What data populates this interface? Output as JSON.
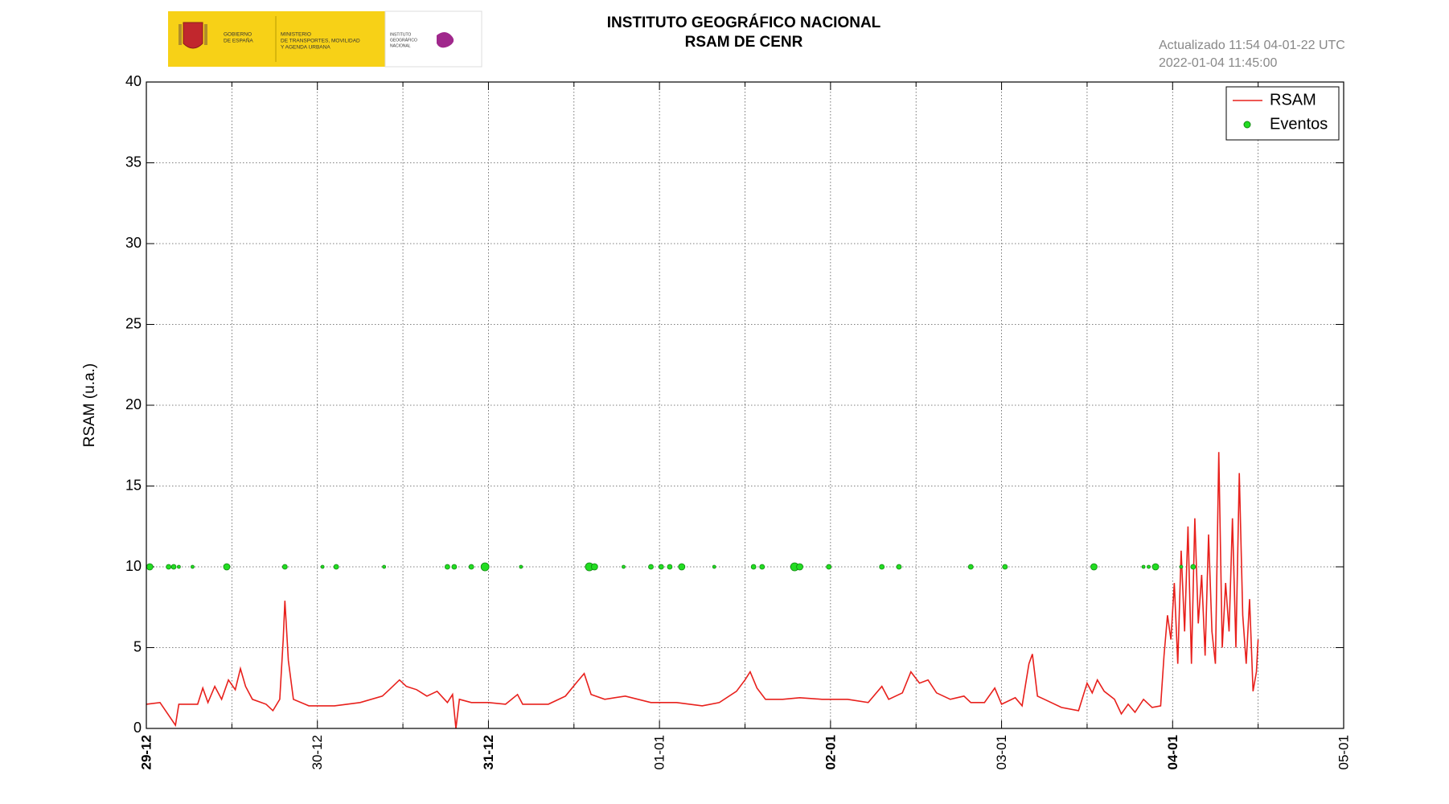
{
  "logo": {
    "government": [
      "GOBIERNO",
      "DE ESPAÑA"
    ],
    "ministry": [
      "MINISTERIO",
      "DE TRANSPORTES, MOVILIDAD",
      "Y AGENDA URBANA"
    ],
    "institute": [
      "INSTITUTO",
      "GEOGRÁFICO",
      "NACIONAL"
    ]
  },
  "chart_data": {
    "type": "line",
    "title": "INSTITUTO GEOGRÁFICO NACIONAL",
    "subtitle": "RSAM DE CENR",
    "annotations": [
      "Actualizado 11:54 04-01-22 UTC",
      "2022-01-04 11:45:00"
    ],
    "y_label": "RSAM (u.a.)",
    "xlim": [
      0,
      7
    ],
    "xticks": [
      {
        "value": 0,
        "label": "29-12"
      },
      {
        "value": 1,
        "label": "30-12"
      },
      {
        "value": 2,
        "label": "31-12"
      },
      {
        "value": 3,
        "label": "01-01"
      },
      {
        "value": 4,
        "label": "02-01"
      },
      {
        "value": 5,
        "label": "03-01"
      },
      {
        "value": 6,
        "label": "04-01"
      },
      {
        "value": 7,
        "label": "05-01"
      }
    ],
    "ylim": [
      0,
      40
    ],
    "yticks": [
      0,
      5,
      10,
      15,
      20,
      25,
      30,
      35,
      40
    ],
    "grid": true,
    "legend": "upper right",
    "series": [
      {
        "name": "RSAM",
        "type": "line",
        "color": "#e8201c",
        "x": [
          0.0,
          0.08,
          0.17,
          0.19,
          0.3,
          0.33,
          0.36,
          0.4,
          0.44,
          0.48,
          0.52,
          0.55,
          0.58,
          0.62,
          0.7,
          0.74,
          0.78,
          0.8,
          0.81,
          0.83,
          0.86,
          0.95,
          1.1,
          1.25,
          1.38,
          1.42,
          1.48,
          1.52,
          1.58,
          1.64,
          1.7,
          1.76,
          1.79,
          1.81,
          1.83,
          1.9,
          2.0,
          2.1,
          2.17,
          2.2,
          2.35,
          2.45,
          2.52,
          2.56,
          2.6,
          2.68,
          2.8,
          2.95,
          3.1,
          3.25,
          3.35,
          3.45,
          3.5,
          3.53,
          3.57,
          3.62,
          3.72,
          3.82,
          3.95,
          4.1,
          4.22,
          4.3,
          4.34,
          4.42,
          4.47,
          4.52,
          4.57,
          4.62,
          4.7,
          4.78,
          4.82,
          4.9,
          4.96,
          5.0,
          5.08,
          5.12,
          5.16,
          5.18,
          5.21,
          5.25,
          5.35,
          5.45,
          5.5,
          5.53,
          5.56,
          5.6,
          5.66,
          5.7,
          5.74,
          5.78,
          5.83,
          5.88,
          5.93,
          5.95,
          5.97,
          5.99,
          6.01,
          6.03,
          6.05,
          6.07,
          6.09,
          6.11,
          6.13,
          6.15,
          6.17,
          6.19,
          6.21,
          6.23,
          6.25,
          6.27,
          6.29,
          6.31,
          6.33,
          6.35,
          6.37,
          6.39,
          6.41,
          6.43,
          6.45,
          6.47,
          6.49,
          6.5
        ],
        "values": [
          1.5,
          1.6,
          0.2,
          1.5,
          1.5,
          2.5,
          1.6,
          2.6,
          1.8,
          3.0,
          2.4,
          3.7,
          2.6,
          1.8,
          1.5,
          1.1,
          1.8,
          5.5,
          7.9,
          4.2,
          1.8,
          1.4,
          1.4,
          1.6,
          2.0,
          2.4,
          3.0,
          2.6,
          2.4,
          2.0,
          2.3,
          1.6,
          2.1,
          0.0,
          1.8,
          1.6,
          1.6,
          1.5,
          2.1,
          1.5,
          1.5,
          2.0,
          2.9,
          3.4,
          2.1,
          1.8,
          2.0,
          1.6,
          1.6,
          1.4,
          1.6,
          2.3,
          3.0,
          3.5,
          2.5,
          1.8,
          1.8,
          1.9,
          1.8,
          1.8,
          1.6,
          2.6,
          1.8,
          2.2,
          3.5,
          2.8,
          3.0,
          2.2,
          1.8,
          2.0,
          1.6,
          1.6,
          2.5,
          1.5,
          1.9,
          1.4,
          4.0,
          4.6,
          2.0,
          1.8,
          1.3,
          1.1,
          2.8,
          2.2,
          3.0,
          2.3,
          1.8,
          0.9,
          1.5,
          1.0,
          1.8,
          1.3,
          1.4,
          4.5,
          7.0,
          5.5,
          9.0,
          4.0,
          11.0,
          6.0,
          12.5,
          4.0,
          13.0,
          6.5,
          9.5,
          4.5,
          12.0,
          6.0,
          4.0,
          17.1,
          5.0,
          9.0,
          6.0,
          13.0,
          5.0,
          15.8,
          7.0,
          4.0,
          8.0,
          2.3,
          3.5,
          5.5
        ]
      },
      {
        "name": "Eventos",
        "type": "scatter",
        "color": "#22dd22",
        "x": [
          0.02,
          0.13,
          0.16,
          0.19,
          0.27,
          0.47,
          0.81,
          1.03,
          1.11,
          1.39,
          1.76,
          1.8,
          1.9,
          1.98,
          2.19,
          2.59,
          2.62,
          2.79,
          2.95,
          3.01,
          3.06,
          3.13,
          3.32,
          3.55,
          3.6,
          3.79,
          3.82,
          3.99,
          4.3,
          4.4,
          4.82,
          5.02,
          5.54,
          5.83,
          5.86,
          5.9,
          6.05,
          6.12
        ],
        "values": [
          10,
          10,
          10,
          10,
          10,
          10,
          10,
          10,
          10,
          10,
          10,
          10,
          10,
          10,
          10,
          10,
          10,
          10,
          10,
          10,
          10,
          10,
          10,
          10,
          10,
          10,
          10,
          10,
          10,
          10,
          10,
          10,
          10,
          10,
          10,
          10,
          10,
          10
        ],
        "sizes": [
          4,
          3,
          3,
          2,
          2,
          4,
          3,
          2,
          3,
          2,
          3,
          3,
          3,
          5,
          2,
          5,
          4,
          2,
          3,
          3,
          3,
          4,
          2,
          3,
          3,
          5,
          4,
          3,
          3,
          3,
          3,
          3,
          4,
          2,
          2,
          4,
          2,
          3
        ]
      }
    ]
  }
}
